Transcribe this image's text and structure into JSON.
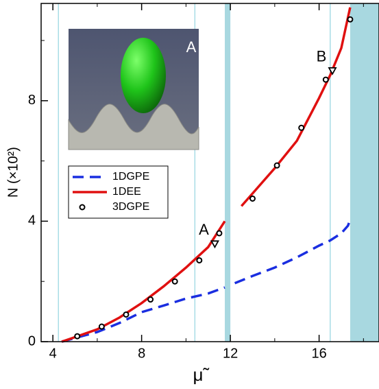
{
  "chart_data": {
    "type": "line",
    "xlabel": "μ̃",
    "ylabel": "N (×10²)",
    "xlim": [
      3.47,
      18.7
    ],
    "ylim": [
      0,
      11.23
    ],
    "xticks": [
      4,
      8,
      12,
      16
    ],
    "yticks": [
      0,
      4,
      8
    ],
    "xminor": [
      6,
      10,
      14,
      18
    ],
    "yminor": [
      2,
      6,
      10
    ],
    "vlines": [
      4.25,
      10.4,
      16.5
    ],
    "vline_color": "#a8dce6",
    "shaded_regions": [
      [
        11.75,
        12.0
      ],
      [
        17.4,
        18.7
      ]
    ],
    "shade_color": "#a8d8e0",
    "legend": "center left",
    "series": [
      {
        "name": "1DGPE",
        "style": "dashed",
        "color": "#1a2ee0",
        "x": [
          4.4,
          5,
          6,
          7,
          8,
          9,
          10,
          11,
          11.75,
          null,
          12.2,
          13,
          14,
          15,
          16,
          16.5,
          17,
          17.3,
          17.4
        ],
        "values": [
          0,
          0.12,
          0.32,
          0.62,
          0.98,
          1.2,
          1.43,
          1.6,
          1.8,
          null,
          1.94,
          2.18,
          2.46,
          2.8,
          3.19,
          3.36,
          3.6,
          3.85,
          4.05
        ]
      },
      {
        "name": "1DEE",
        "style": "solid",
        "color": "#e01010",
        "x": [
          4.4,
          5,
          6,
          7,
          8,
          9,
          10,
          11,
          11.75,
          null,
          12.5,
          13,
          14,
          15,
          16,
          16.5,
          17,
          17.4
        ],
        "values": [
          0,
          0.15,
          0.41,
          0.8,
          1.28,
          1.84,
          2.46,
          3.14,
          4.0,
          null,
          4.5,
          4.92,
          5.76,
          6.67,
          8.09,
          8.85,
          9.75,
          11.1
        ]
      },
      {
        "name": "3DGPE",
        "style": "markers",
        "color": "#000000",
        "x": [
          5.1,
          6.2,
          7.3,
          8.4,
          9.5,
          10.6,
          11.5,
          13.0,
          14.1,
          15.2,
          16.3,
          17.4
        ],
        "values": [
          0.18,
          0.5,
          0.9,
          1.4,
          2.0,
          2.7,
          3.6,
          4.75,
          5.85,
          7.1,
          8.7,
          10.7
        ]
      }
    ],
    "markers": [
      {
        "label": "A",
        "x": 11.3,
        "y": 3.25
      },
      {
        "label": "B",
        "x": 16.6,
        "y": 9.0
      }
    ],
    "inset_label": "A"
  }
}
